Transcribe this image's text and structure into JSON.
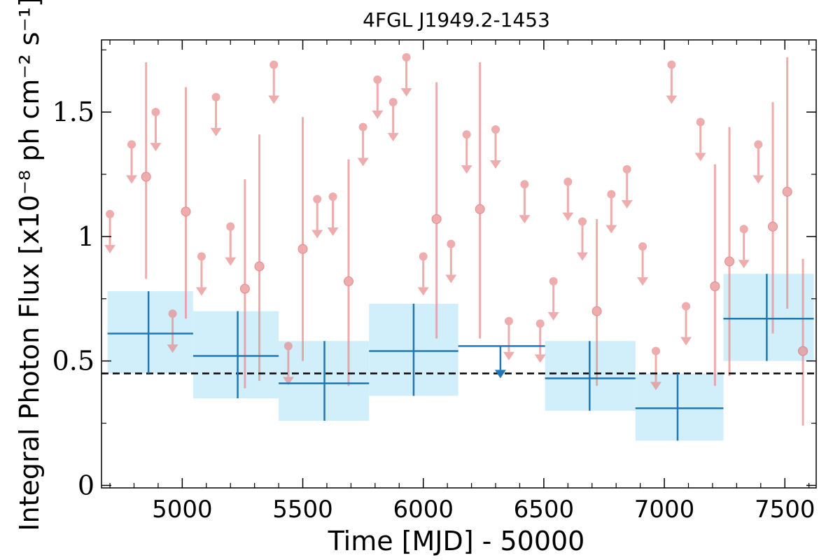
{
  "chart_data": {
    "type": "scatter",
    "title": "4FGL J1949.2-1453",
    "xlabel": "Time [MJD] - 50000",
    "ylabel": "Integral Photon Flux [x10⁻⁸ ph cm⁻² s⁻¹]",
    "xlim": [
      4665,
      7630
    ],
    "ylim": [
      -0.01,
      1.79
    ],
    "xticks": [
      5000,
      5500,
      6000,
      6500,
      7000,
      7500
    ],
    "xtick_labels": [
      "5000",
      "5500",
      "6000",
      "6500",
      "7000",
      "7500"
    ],
    "yticks": [
      0,
      0.5,
      1,
      1.5
    ],
    "ytick_labels": [
      "0",
      "0.5",
      "1",
      "1.5"
    ],
    "grid": false,
    "reference_line": {
      "y": 0.45,
      "style": "dashed",
      "color": "#000000"
    },
    "colors": {
      "short_bins": "#e8898b",
      "long_bins": "#1f77b4",
      "long_band": "#cdeefb"
    },
    "short_bins": {
      "detections": [
        {
          "x": 4850,
          "y": 1.24,
          "ylo": 0.83,
          "yhi": 1.7
        },
        {
          "x": 5015,
          "y": 1.1,
          "ylo": 0.67,
          "yhi": 1.6
        },
        {
          "x": 5260,
          "y": 0.79,
          "ylo": 0.39,
          "yhi": 1.23
        },
        {
          "x": 5320,
          "y": 0.88,
          "ylo": 0.42,
          "yhi": 1.41
        },
        {
          "x": 5500,
          "y": 0.95,
          "ylo": 0.5,
          "yhi": 1.48
        },
        {
          "x": 5690,
          "y": 0.82,
          "ylo": 0.4,
          "yhi": 1.31
        },
        {
          "x": 6055,
          "y": 1.07,
          "ylo": 0.59,
          "yhi": 1.62
        },
        {
          "x": 6235,
          "y": 1.11,
          "ylo": 0.59,
          "yhi": 1.7
        },
        {
          "x": 6720,
          "y": 0.7,
          "ylo": 0.4,
          "yhi": 1.07
        },
        {
          "x": 7210,
          "y": 0.8,
          "ylo": 0.4,
          "yhi": 1.29
        },
        {
          "x": 7270,
          "y": 0.9,
          "ylo": 0.44,
          "yhi": 1.44
        },
        {
          "x": 7450,
          "y": 1.04,
          "ylo": 0.61,
          "yhi": 1.54
        },
        {
          "x": 7510,
          "y": 1.18,
          "ylo": 0.71,
          "yhi": 1.72
        },
        {
          "x": 7575,
          "y": 0.54,
          "ylo": 0.24,
          "yhi": 0.91
        }
      ],
      "upper_limits": [
        {
          "x": 4700,
          "y": 1.09
        },
        {
          "x": 4790,
          "y": 1.37
        },
        {
          "x": 4890,
          "y": 1.5
        },
        {
          "x": 4960,
          "y": 0.69
        },
        {
          "x": 5080,
          "y": 0.92
        },
        {
          "x": 5140,
          "y": 1.56
        },
        {
          "x": 5200,
          "y": 1.04
        },
        {
          "x": 5380,
          "y": 1.69
        },
        {
          "x": 5440,
          "y": 0.56
        },
        {
          "x": 5560,
          "y": 1.15
        },
        {
          "x": 5625,
          "y": 1.16
        },
        {
          "x": 5750,
          "y": 1.44
        },
        {
          "x": 5810,
          "y": 1.63
        },
        {
          "x": 5875,
          "y": 1.54
        },
        {
          "x": 5930,
          "y": 1.72
        },
        {
          "x": 6000,
          "y": 0.92
        },
        {
          "x": 6115,
          "y": 0.97
        },
        {
          "x": 6180,
          "y": 1.41
        },
        {
          "x": 6300,
          "y": 1.43
        },
        {
          "x": 6355,
          "y": 0.66
        },
        {
          "x": 6420,
          "y": 1.21
        },
        {
          "x": 6485,
          "y": 0.65
        },
        {
          "x": 6540,
          "y": 0.82
        },
        {
          "x": 6600,
          "y": 1.22
        },
        {
          "x": 6660,
          "y": 1.06
        },
        {
          "x": 6780,
          "y": 1.17
        },
        {
          "x": 6845,
          "y": 1.27
        },
        {
          "x": 6910,
          "y": 0.96
        },
        {
          "x": 6965,
          "y": 0.54
        },
        {
          "x": 7030,
          "y": 1.69
        },
        {
          "x": 7090,
          "y": 0.72
        },
        {
          "x": 7150,
          "y": 1.46
        },
        {
          "x": 7330,
          "y": 1.03
        },
        {
          "x": 7390,
          "y": 1.37
        }
      ]
    },
    "long_bins": {
      "detections": [
        {
          "x": 4860,
          "xlo": 4690,
          "xhi": 5045,
          "y": 0.61,
          "ylo": 0.45,
          "yhi": 0.78,
          "band_lo": 0.45,
          "band_hi": 0.78
        },
        {
          "x": 5230,
          "xlo": 5045,
          "xhi": 5400,
          "y": 0.52,
          "ylo": 0.35,
          "yhi": 0.7,
          "band_lo": 0.35,
          "band_hi": 0.7
        },
        {
          "x": 5590,
          "xlo": 5400,
          "xhi": 5775,
          "y": 0.41,
          "ylo": 0.26,
          "yhi": 0.58,
          "band_lo": 0.26,
          "band_hi": 0.58
        },
        {
          "x": 5960,
          "xlo": 5775,
          "xhi": 6145,
          "y": 0.54,
          "ylo": 0.36,
          "yhi": 0.73,
          "band_lo": 0.36,
          "band_hi": 0.73
        },
        {
          "x": 6690,
          "xlo": 6505,
          "xhi": 6880,
          "y": 0.43,
          "ylo": 0.3,
          "yhi": 0.58,
          "band_lo": 0.3,
          "band_hi": 0.58
        },
        {
          "x": 7055,
          "xlo": 6880,
          "xhi": 7245,
          "y": 0.31,
          "ylo": 0.18,
          "yhi": 0.45,
          "band_lo": 0.18,
          "band_hi": 0.45
        },
        {
          "x": 7425,
          "xlo": 7245,
          "xhi": 7620,
          "y": 0.67,
          "ylo": 0.5,
          "yhi": 0.85,
          "band_lo": 0.5,
          "band_hi": 0.85
        }
      ],
      "upper_limits": [
        {
          "x": 6320,
          "xlo": 6145,
          "xhi": 6505,
          "y": 0.56
        }
      ]
    }
  }
}
